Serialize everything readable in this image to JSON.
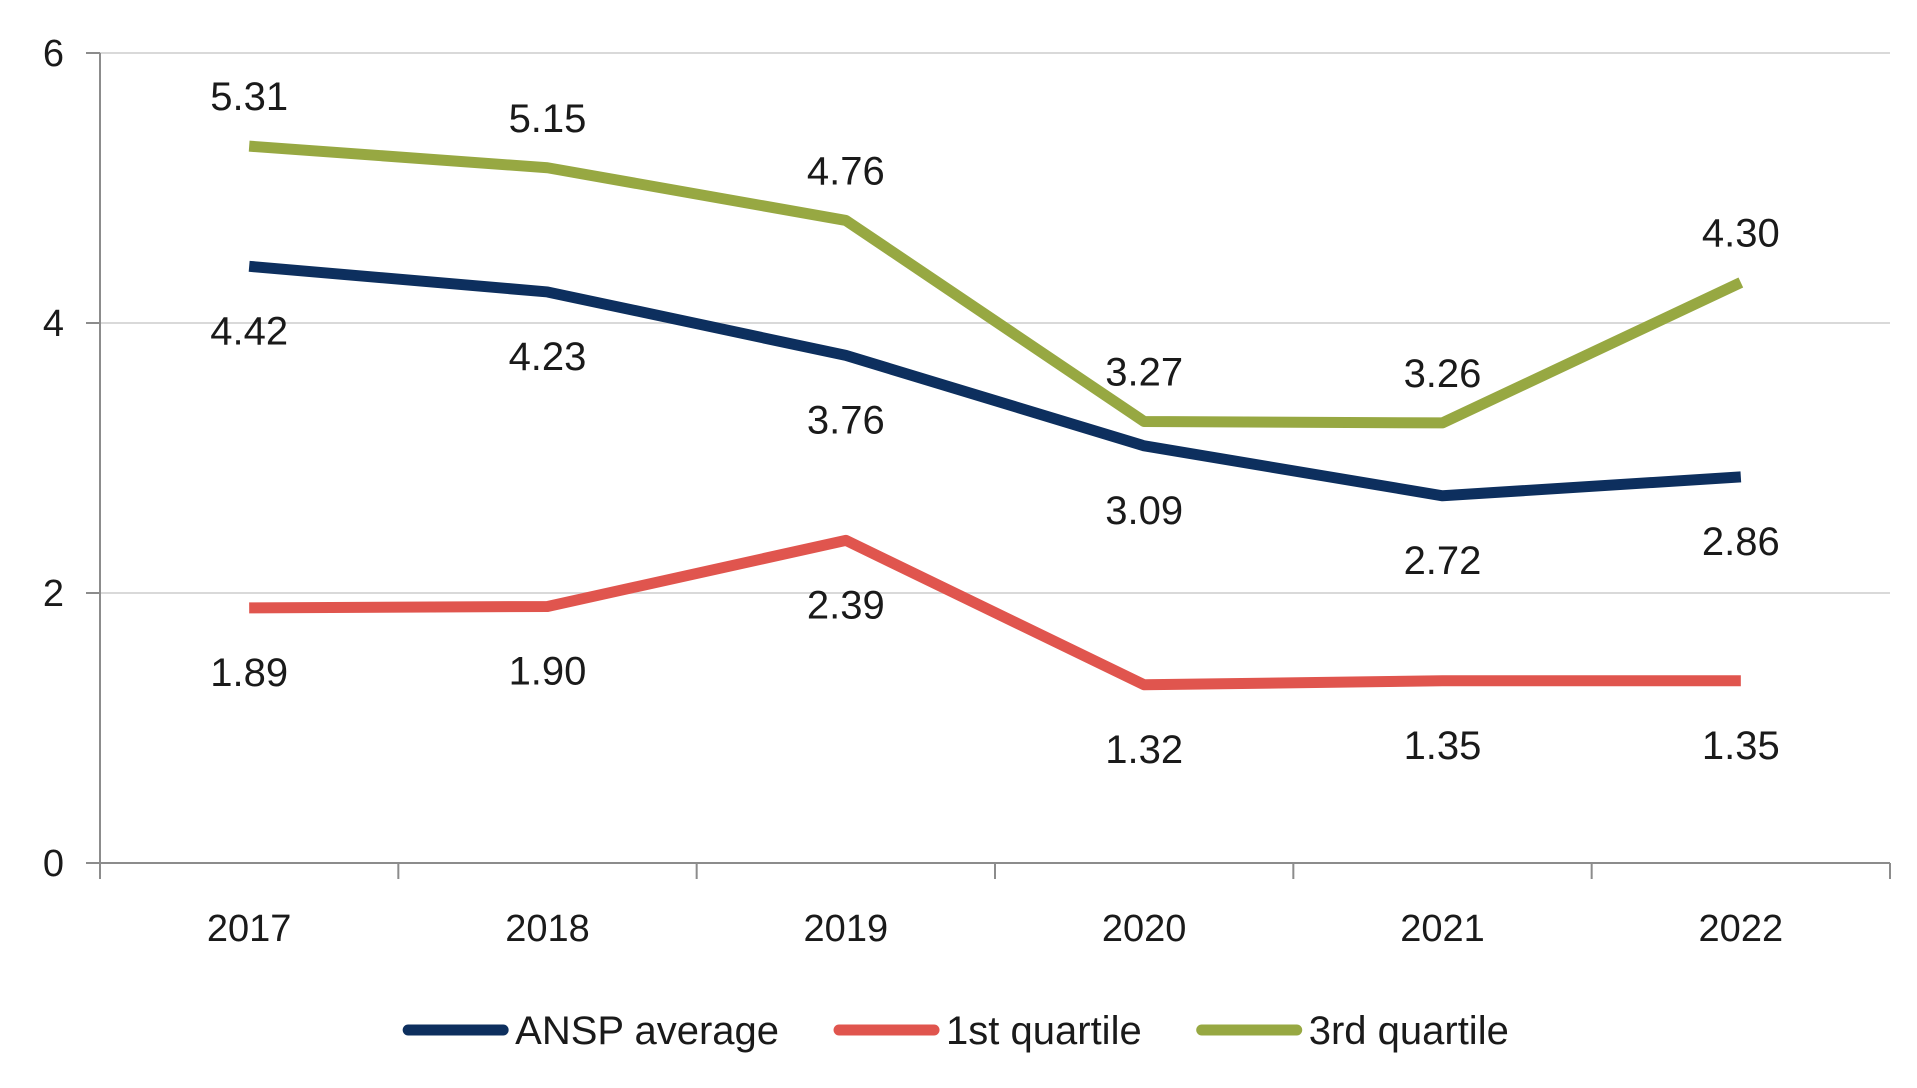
{
  "chart_data": {
    "type": "line",
    "title": "",
    "xlabel": "",
    "ylabel": "",
    "categories": [
      "2017",
      "2018",
      "2019",
      "2020",
      "2021",
      "2022"
    ],
    "y_ticks": [
      "0",
      "2",
      "4",
      "6"
    ],
    "ylim": [
      0,
      6
    ],
    "grid": "horizontal",
    "legend_position": "bottom",
    "series": [
      {
        "name": "ANSP average",
        "color": "#0d2f5e",
        "values": [
          4.42,
          4.23,
          3.76,
          3.09,
          2.72,
          2.86
        ],
        "labels": [
          "4.42",
          "4.23",
          "3.76",
          "3.09",
          "2.72",
          "2.86"
        ],
        "label_side": [
          "below",
          "below",
          "below",
          "below",
          "below",
          "below"
        ]
      },
      {
        "name": "1st quartile",
        "color": "#e0554e",
        "values": [
          1.89,
          1.9,
          2.39,
          1.32,
          1.35,
          1.35
        ],
        "labels": [
          "1.89",
          "1.90",
          "2.39",
          "1.32",
          "1.35",
          "1.35"
        ],
        "label_side": [
          "below",
          "below",
          "below",
          "below",
          "below",
          "below"
        ]
      },
      {
        "name": "3rd quartile",
        "color": "#97a842",
        "values": [
          5.31,
          5.15,
          4.76,
          3.27,
          3.26,
          4.3
        ],
        "labels": [
          "5.31",
          "5.15",
          "4.76",
          "3.27",
          "3.26",
          "4.30"
        ],
        "label_side": [
          "above",
          "above",
          "above",
          "above",
          "above",
          "above"
        ]
      }
    ]
  }
}
